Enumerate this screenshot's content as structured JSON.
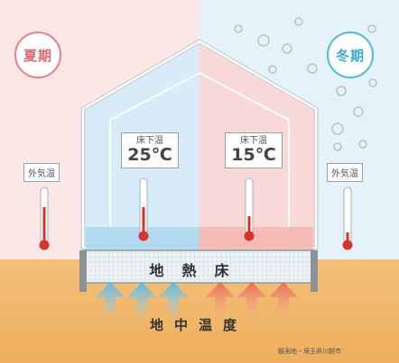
{
  "labels": {
    "summer": "夏期",
    "winter": "冬期",
    "outside_left": "外気温",
    "outside_right": "外気温",
    "underfloor_left": "床下温",
    "underfloor_right": "床下温",
    "temp_left": "25℃",
    "temp_right": "15℃",
    "floor": "地熱床",
    "ground": "地中温度",
    "footnote": "観測地・埼玉県川越市"
  },
  "colors": {
    "summer_accent": "#e0646d",
    "winter_accent": "#3aa8d6",
    "ground": "#f0b668",
    "thermometer_red": "#d9342b"
  },
  "icons": [
    "thermometer-icon",
    "arrow-up-icon",
    "snow-bubble-icon"
  ]
}
